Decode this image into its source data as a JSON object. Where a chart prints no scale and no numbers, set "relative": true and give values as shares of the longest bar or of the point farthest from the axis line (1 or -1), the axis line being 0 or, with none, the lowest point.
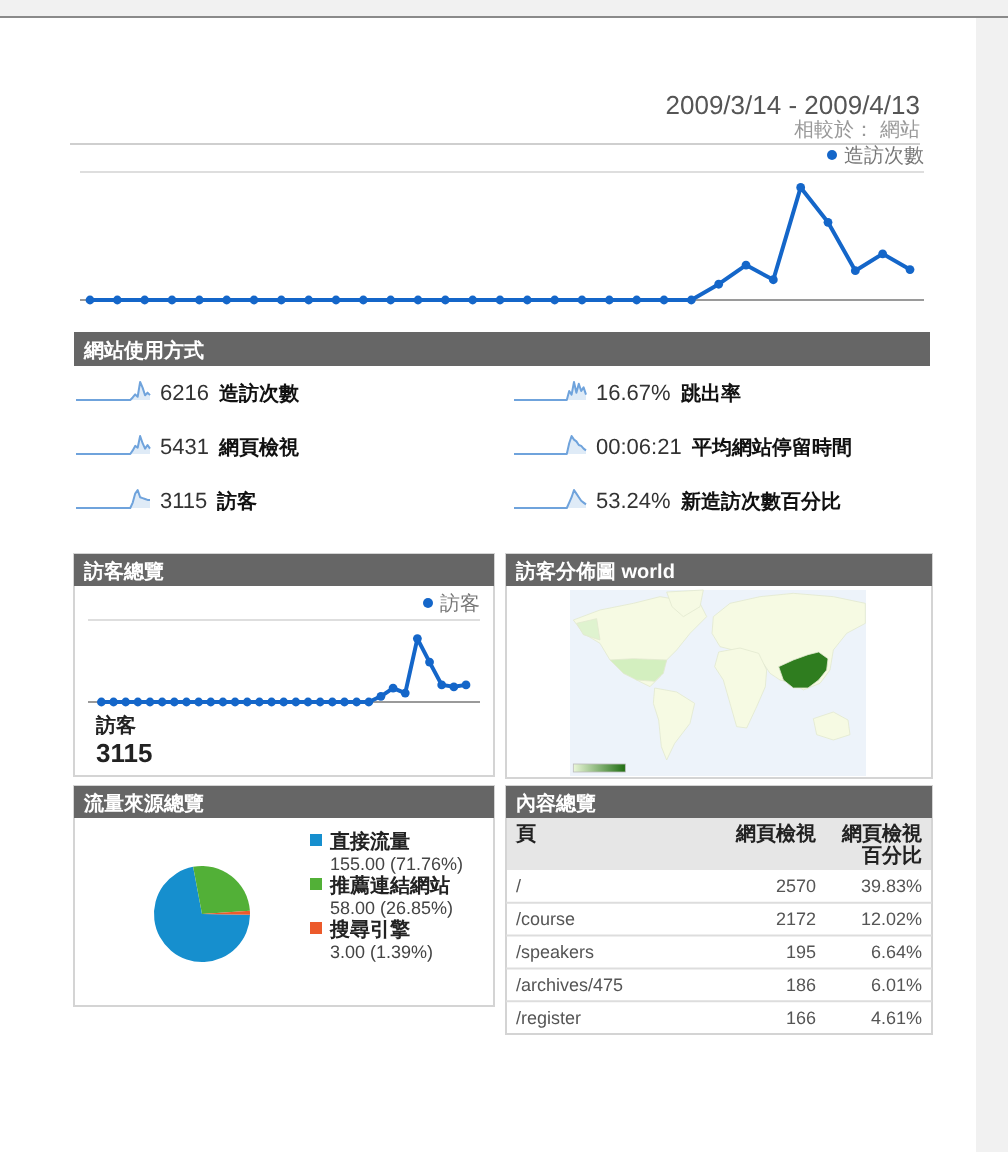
{
  "chart_data": [
    {
      "type": "line",
      "title": "2009/3/14 - 2009/4/13",
      "subtitle": "相較於： 網站",
      "categories": [
        null,
        null,
        null,
        null,
        null,
        null,
        null,
        null,
        null,
        null,
        null,
        null,
        null,
        null,
        null,
        null,
        null,
        null,
        null,
        null,
        null,
        null,
        null,
        null,
        null,
        null,
        null,
        null,
        null,
        null,
        null
      ],
      "relative": true,
      "marker": "circle",
      "legend": "top right",
      "series": [
        {
          "name": "造訪次數",
          "color": "#1466c9",
          "values": [
            0,
            0,
            0,
            0,
            0,
            0,
            0,
            0,
            0,
            0,
            0,
            0,
            0,
            0,
            0,
            0,
            0,
            0,
            0,
            0,
            0,
            0,
            0,
            0.14,
            0.31,
            0.18,
            1,
            0.69,
            0.26,
            0.41,
            0.27
          ]
        }
      ]
    },
    {
      "type": "other",
      "title": "網站使用方式"
    },
    {
      "type": "area",
      "categories": [
        null,
        null,
        null,
        null,
        null,
        null,
        null,
        null,
        null,
        null,
        null,
        null,
        null,
        null,
        null,
        null,
        null,
        null,
        null,
        null,
        null,
        null,
        null,
        null,
        null,
        null,
        null,
        null,
        null,
        null,
        null
      ],
      "relative": true,
      "color": "#6fa3dc",
      "values": [
        0,
        0,
        0,
        0,
        0,
        0,
        0,
        0,
        0,
        0,
        0,
        0,
        0,
        0,
        0,
        0,
        0,
        0,
        0,
        0,
        0,
        0,
        0,
        0.14,
        0.31,
        0.18,
        1,
        0.69,
        0.26,
        0.41,
        0.27
      ],
      "annotations": [
        "6216",
        "造訪次數"
      ]
    },
    {
      "type": "area",
      "categories": [
        null,
        null,
        null,
        null,
        null,
        null,
        null,
        null,
        null,
        null,
        null,
        null,
        null,
        null,
        null,
        null,
        null,
        null,
        null,
        null,
        null,
        null,
        null,
        null,
        null,
        null,
        null,
        null,
        null,
        null,
        null
      ],
      "relative": true,
      "color": "#6fa3dc",
      "values": [
        0,
        0,
        0,
        0,
        0,
        0,
        0,
        0,
        0,
        0,
        0,
        0,
        0,
        0,
        0,
        0,
        0,
        0,
        0,
        0,
        0,
        0,
        0,
        0.5,
        0.3,
        1,
        0.4,
        0.9,
        0.5,
        0.7,
        0.3
      ],
      "annotations": [
        "16.67%",
        "跳出率"
      ]
    },
    {
      "type": "area",
      "categories": [
        null,
        null,
        null,
        null,
        null,
        null,
        null,
        null,
        null,
        null,
        null,
        null,
        null,
        null,
        null,
        null,
        null,
        null,
        null,
        null,
        null,
        null,
        null,
        null,
        null,
        null,
        null,
        null,
        null,
        null,
        null
      ],
      "relative": true,
      "color": "#6fa3dc",
      "values": [
        0,
        0,
        0,
        0,
        0,
        0,
        0,
        0,
        0,
        0,
        0,
        0,
        0,
        0,
        0,
        0,
        0,
        0,
        0,
        0,
        0,
        0,
        0,
        0.2,
        0.45,
        0.35,
        1,
        0.6,
        0.3,
        0.5,
        0.3
      ],
      "annotations": [
        "5431",
        "網頁檢視"
      ]
    },
    {
      "type": "area",
      "categories": [
        null,
        null,
        null,
        null,
        null,
        null,
        null,
        null,
        null,
        null,
        null,
        null,
        null,
        null,
        null,
        null,
        null,
        null,
        null,
        null,
        null,
        null,
        null,
        null,
        null,
        null,
        null,
        null,
        null,
        null,
        null
      ],
      "relative": true,
      "color": "#6fa3dc",
      "values": [
        0,
        0,
        0,
        0,
        0,
        0,
        0,
        0,
        0,
        0,
        0,
        0,
        0,
        0,
        0,
        0,
        0,
        0,
        0,
        0,
        0,
        0,
        0,
        0.6,
        1,
        0.8,
        0.7,
        0.5,
        0.45,
        0.3,
        0.2
      ],
      "annotations": [
        "00:06:21",
        "平均網站停留時間"
      ]
    },
    {
      "type": "area",
      "categories": [
        null,
        null,
        null,
        null,
        null,
        null,
        null,
        null,
        null,
        null,
        null,
        null,
        null,
        null,
        null,
        null,
        null,
        null,
        null,
        null,
        null,
        null,
        null,
        null,
        null,
        null,
        null,
        null,
        null,
        null,
        null
      ],
      "relative": true,
      "color": "#6fa3dc",
      "values": [
        0,
        0,
        0,
        0,
        0,
        0,
        0,
        0,
        0,
        0,
        0,
        0,
        0,
        0,
        0,
        0,
        0,
        0,
        0,
        0,
        0,
        0,
        0,
        0.3,
        0.8,
        1,
        0.6,
        0.55,
        0.5,
        0.45,
        0.45
      ],
      "annotations": [
        "3115",
        "訪客"
      ]
    },
    {
      "type": "area",
      "categories": [
        null,
        null,
        null,
        null,
        null,
        null,
        null,
        null,
        null,
        null,
        null,
        null,
        null,
        null,
        null,
        null,
        null,
        null,
        null,
        null,
        null,
        null,
        null,
        null,
        null,
        null,
        null,
        null,
        null,
        null,
        null
      ],
      "relative": true,
      "color": "#6fa3dc",
      "values": [
        0,
        0,
        0,
        0,
        0,
        0,
        0,
        0,
        0,
        0,
        0,
        0,
        0,
        0,
        0,
        0,
        0,
        0,
        0,
        0,
        0,
        0,
        0,
        0.3,
        0.6,
        1,
        0.8,
        0.6,
        0.4,
        0.3,
        0.2
      ],
      "annotations": [
        "53.24%",
        "新造訪次數百分比"
      ]
    },
    {
      "type": "line",
      "title": "訪客總覽",
      "categories": [
        null,
        null,
        null,
        null,
        null,
        null,
        null,
        null,
        null,
        null,
        null,
        null,
        null,
        null,
        null,
        null,
        null,
        null,
        null,
        null,
        null,
        null,
        null,
        null,
        null,
        null,
        null,
        null,
        null,
        null,
        null
      ],
      "relative": true,
      "marker": "circle",
      "legend": "top right",
      "series": [
        {
          "name": "訪客",
          "color": "#1466c9",
          "values": [
            0,
            0,
            0,
            0,
            0,
            0,
            0,
            0,
            0,
            0,
            0,
            0,
            0,
            0,
            0,
            0,
            0,
            0,
            0,
            0,
            0,
            0,
            0,
            0.09,
            0.22,
            0.14,
            1,
            0.63,
            0.27,
            0.24,
            0.27
          ]
        }
      ],
      "annotations": [
        "訪客",
        "3115"
      ]
    },
    {
      "type": "other",
      "title": "訪客分佈圖 world"
    },
    {
      "type": "pie",
      "title": "流量來源總覽",
      "categories": [
        "直接流量",
        "推薦連結網站",
        "搜尋引擎"
      ],
      "values": [
        155,
        58,
        3
      ],
      "colors": [
        "#168fce",
        "#52b037",
        "#ec5a2b"
      ],
      "value_labels": [
        "155.00 (71.76%)",
        "58.00 (26.85%)",
        "3.00 (1.39%)"
      ],
      "legend": "right"
    },
    {
      "type": "other",
      "title": "內容總覽",
      "annotations": [
        "頁",
        "網頁檢視",
        "網頁檢視百分比",
        "/",
        "2570",
        "39.83%",
        "/course",
        "2172",
        "12.02%",
        "/speakers",
        "195",
        "6.64%",
        "/archives/475",
        "186",
        "6.01%",
        "/register",
        "166",
        "4.61%"
      ]
    }
  ]
}
